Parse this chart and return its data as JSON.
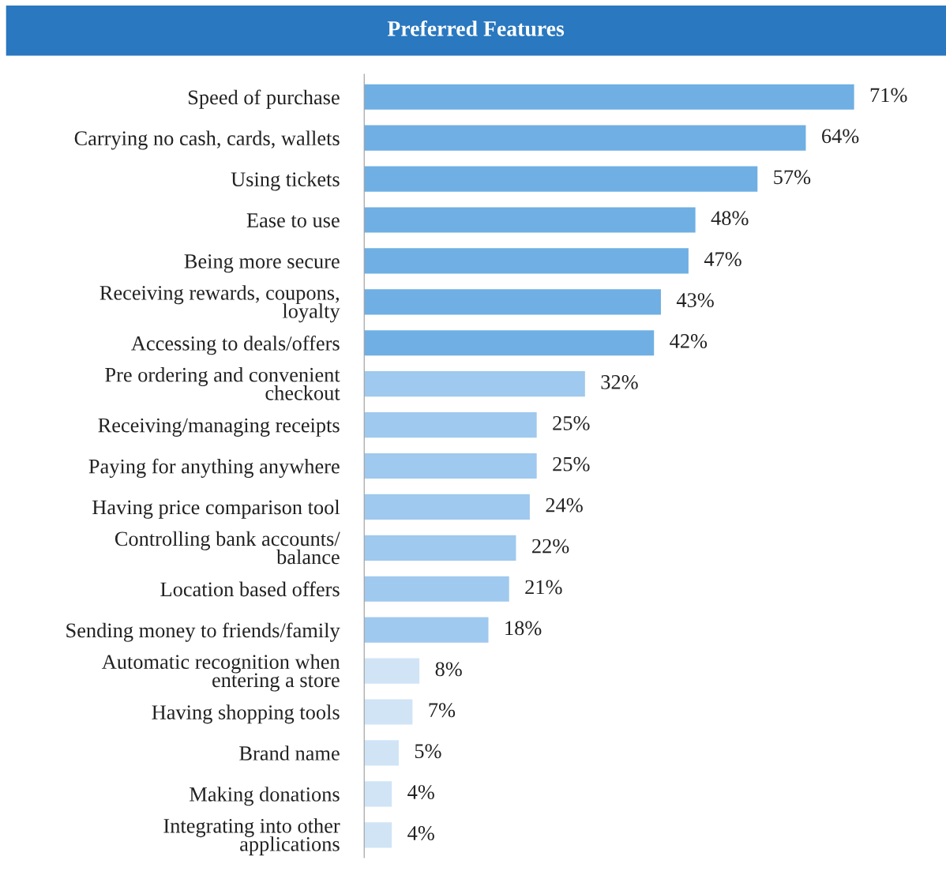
{
  "chart_data": {
    "type": "bar",
    "orientation": "horizontal",
    "title": "Preferred Features",
    "categories": [
      "Speed of purchase",
      "Carrying no cash, cards, wallets",
      "Using tickets",
      "Ease to use",
      "Being more secure",
      "Receiving rewards, coupons,\nloyalty",
      "Accessing to deals/offers",
      "Pre ordering and convenient\ncheckout",
      "Receiving/managing receipts",
      "Paying for anything anywhere",
      "Having price comparison tool",
      "Controlling bank accounts/\nbalance",
      "Location based offers",
      "Sending money to friends/family",
      "Automatic recognition when\nentering a store",
      "Having shopping tools",
      "Brand name",
      "Making donations",
      "Integrating into other\napplications"
    ],
    "values": [
      71,
      64,
      57,
      48,
      47,
      43,
      42,
      32,
      25,
      25,
      24,
      22,
      21,
      18,
      8,
      7,
      5,
      4,
      4
    ],
    "value_labels": [
      "71%",
      "64%",
      "57%",
      "48%",
      "47%",
      "43%",
      "42%",
      "32%",
      "25%",
      "25%",
      "24%",
      "22%",
      "21%",
      "18%",
      "8%",
      "7%",
      "5%",
      "4%",
      "4%"
    ],
    "colors": [
      "#6fafe3",
      "#6fafe3",
      "#6fafe3",
      "#6fafe3",
      "#6fafe3",
      "#6fafe3",
      "#6fafe3",
      "#9fc9ee",
      "#9fc9ee",
      "#9fc9ee",
      "#9fc9ee",
      "#9fc9ee",
      "#9fc9ee",
      "#9fc9ee",
      "#d0e4f6",
      "#d0e4f6",
      "#d0e4f6",
      "#d0e4f6",
      "#d0e4f6"
    ],
    "grid": false,
    "legend": false,
    "tick_labels": "y"
  }
}
